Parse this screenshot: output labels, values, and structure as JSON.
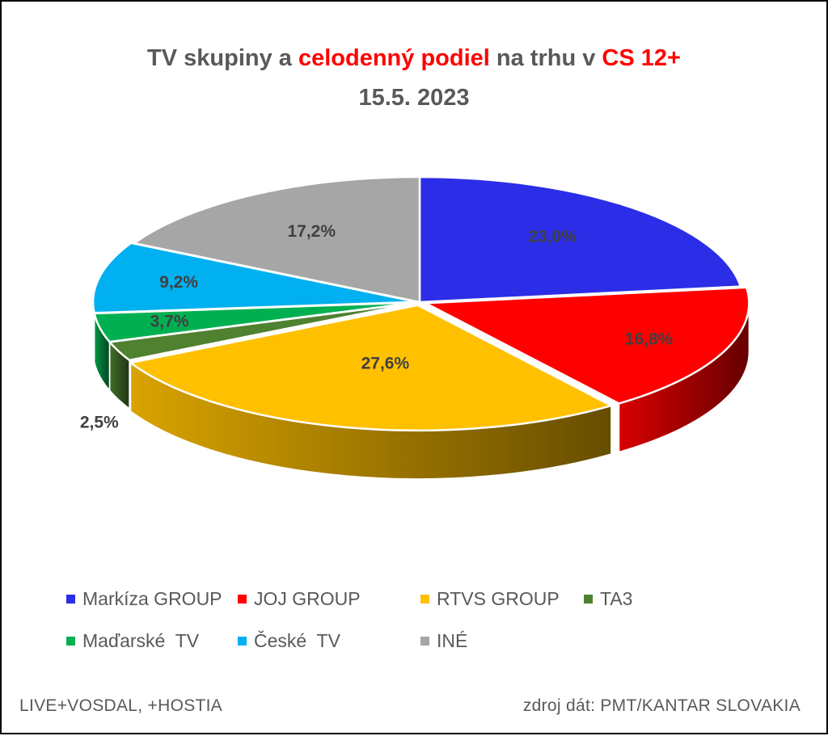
{
  "title": {
    "part1": "TV skupiny a ",
    "part2": "celodenný podiel",
    "part3": " na trhu v ",
    "part4": "CS 12+"
  },
  "subtitle": "15.5. 2023",
  "footer": {
    "left": "LIVE+VOSDAL,  +HOSTIA",
    "right": "zdroj dát: PMT/KANTAR SLOVAKIA"
  },
  "chart_data": {
    "type": "pie",
    "style": "3d-exploded",
    "title": "TV skupiny a celodenný podiel na trhu v CS 12+ 15.5. 2023",
    "legend_position": "bottom",
    "slices": [
      {
        "name": "Markíza GROUP",
        "value": 23.0,
        "label": "23,0%",
        "color": "#2b2ee6"
      },
      {
        "name": "JOJ GROUP",
        "value": 16.8,
        "label": "16,8%",
        "color": "#ff0000"
      },
      {
        "name": "RTVS GROUP",
        "value": 27.6,
        "label": "27,6%",
        "color": "#ffc000"
      },
      {
        "name": "TA3",
        "value": 2.5,
        "label": "2,5%",
        "color": "#4f8130"
      },
      {
        "name": "Maďarské  TV",
        "value": 3.7,
        "label": "3,7%",
        "color": "#00b050"
      },
      {
        "name": "České  TV",
        "value": 9.2,
        "label": "9,2%",
        "color": "#00b0f0"
      },
      {
        "name": "INÉ",
        "value": 17.2,
        "label": "17,2%",
        "color": "#a6a6a6"
      }
    ]
  }
}
